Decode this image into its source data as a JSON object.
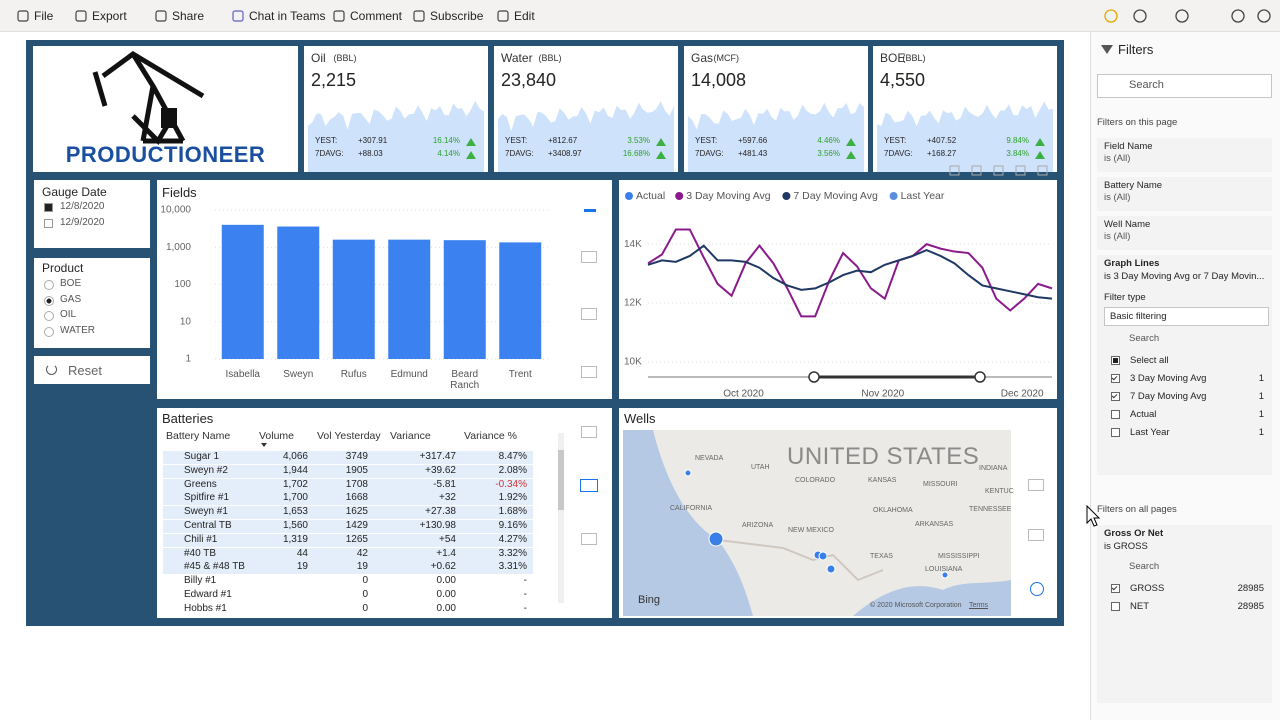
{
  "toolbar": {
    "items": [
      "File",
      "Export",
      "Share",
      "Chat in Teams",
      "Comment",
      "Subscribe",
      "Edit"
    ]
  },
  "logo": "PRODUCTIONEER",
  "kpis": [
    {
      "title": "Oil",
      "unit": "(BBL)",
      "value": "2,215",
      "yest_label": "YEST:",
      "yest": "+307.91",
      "yest_pct": "16.14%",
      "avg_label": "7DAVG:",
      "avg": "+88.03",
      "avg_pct": "4.14%"
    },
    {
      "title": "Water",
      "unit": "(BBL)",
      "value": "23,840",
      "yest_label": "YEST:",
      "yest": "+812.67",
      "yest_pct": "3.53%",
      "avg_label": "7DAVG:",
      "avg": "+3408.97",
      "avg_pct": "16.68%"
    },
    {
      "title": "Gas",
      "unit": "(MCF)",
      "value": "14,008",
      "yest_label": "YEST:",
      "yest": "+597.66",
      "yest_pct": "4.46%",
      "avg_label": "7DAVG:",
      "avg": "+481.43",
      "avg_pct": "3.56%"
    },
    {
      "title": "BOE",
      "unit": "(BBL)",
      "value": "4,550",
      "yest_label": "YEST:",
      "yest": "+407.52",
      "yest_pct": "9.84%",
      "avg_label": "7DAVG:",
      "avg": "+168.27",
      "avg_pct": "3.84%"
    }
  ],
  "gauge_date": {
    "title": "Gauge Date",
    "options": [
      "12/8/2020",
      "12/9/2020"
    ]
  },
  "product": {
    "title": "Product",
    "options": [
      "BOE",
      "GAS",
      "OIL",
      "WATER"
    ]
  },
  "reset": "Reset",
  "chart_data": [
    {
      "type": "bar",
      "title": "Fields",
      "categories": [
        "Isabella",
        "Sweyn",
        "Rufus",
        "Edmund",
        "Beard Ranch",
        "Trent"
      ],
      "values": [
        4000,
        3600,
        1600,
        1600,
        1550,
        1350
      ],
      "color": "#3b82f0",
      "log_scale": true,
      "grid": true,
      "ylim": [
        1,
        10000
      ],
      "yticks": [
        1,
        10,
        100,
        {
          "value": 1000,
          "label": "1,000"
        },
        {
          "value": 10000,
          "label": "10,000"
        }
      ]
    },
    {
      "type": "line",
      "grid": true,
      "ylim": [
        10000,
        15500
      ],
      "yticks": [
        {
          "value": 10000,
          "label": "10K"
        },
        {
          "value": 12000,
          "label": "12K"
        },
        {
          "value": 14000,
          "label": "14K"
        }
      ],
      "xlim": [
        0,
        29
      ],
      "xticks": [
        {
          "value": 7,
          "label": "Oct 2020"
        },
        {
          "value": 17,
          "label": "Nov 2020"
        },
        {
          "value": 27,
          "label": "Dec 2020"
        }
      ],
      "series": [
        {
          "name": "Actual",
          "color": "#3a7fe8",
          "values": [
            null,
            null,
            null,
            null,
            null,
            null,
            null,
            null,
            null,
            null,
            null,
            null,
            null,
            null,
            null,
            null,
            null,
            null,
            null,
            null,
            null,
            null,
            null,
            null,
            null,
            null,
            null,
            null,
            null,
            null
          ]
        },
        {
          "name": "3 Day Moving Avg",
          "color": "#8b1a8b",
          "values": [
            13350,
            13650,
            14500,
            14500,
            13550,
            12650,
            12250,
            13350,
            13950,
            13350,
            12500,
            11550,
            11550,
            12750,
            13700,
            13250,
            12500,
            12150,
            13450,
            13600,
            14000,
            13850,
            13750,
            13700,
            13200,
            12150,
            11750,
            12150,
            12650,
            12500
          ]
        },
        {
          "name": "7 Day Moving Avg",
          "color": "#1f3864",
          "values": [
            13300,
            13450,
            13400,
            13600,
            13950,
            13450,
            13450,
            13400,
            13200,
            12850,
            12600,
            12450,
            12500,
            12700,
            12950,
            13100,
            13050,
            13300,
            13450,
            13600,
            13800,
            13600,
            13350,
            12950,
            12600,
            12500,
            12400,
            12300,
            12200,
            12150
          ]
        },
        {
          "name": "Last Year",
          "color": "#5a8fe0",
          "values": [
            null,
            null,
            null,
            null,
            null,
            null,
            null,
            null,
            null,
            null,
            null,
            null,
            null,
            null,
            null,
            null,
            null,
            null,
            null,
            null,
            null,
            null,
            null,
            null,
            null,
            null,
            null,
            null,
            null,
            null
          ]
        }
      ]
    }
  ],
  "batteries": {
    "title": "Batteries",
    "columns": [
      "Battery Name",
      "Volume",
      "Vol Yesterday",
      "Variance",
      "Variance %"
    ],
    "rows": [
      [
        "Sugar 1",
        "4,066",
        "3749",
        "+317.47",
        "8.47%"
      ],
      [
        "Sweyn #2",
        "1,944",
        "1905",
        "+39.62",
        "2.08%"
      ],
      [
        "Greens",
        "1,702",
        "1708",
        "-5.81",
        "-0.34%"
      ],
      [
        "Spitfire #1",
        "1,700",
        "1668",
        "+32",
        "1.92%"
      ],
      [
        "Sweyn #1",
        "1,653",
        "1625",
        "+27.38",
        "1.68%"
      ],
      [
        "Central TB",
        "1,560",
        "1429",
        "+130.98",
        "9.16%"
      ],
      [
        "Chili #1",
        "1,319",
        "1265",
        "+54",
        "4.27%"
      ],
      [
        "#40 TB",
        "44",
        "42",
        "+1.4",
        "3.32%"
      ],
      [
        "#45 & #48 TB",
        "19",
        "19",
        "+0.62",
        "3.31%"
      ],
      [
        "Billy #1",
        null,
        "0",
        "0.00",
        "-"
      ],
      [
        "Edward #1",
        null,
        "0",
        "0.00",
        "-"
      ],
      [
        "Hobbs #1",
        null,
        "0",
        "0.00",
        "-"
      ]
    ]
  },
  "wells": {
    "title": "Wells",
    "country": "UNITED STATES",
    "states": [
      "NEVADA",
      "UTAH",
      "COLORADO",
      "KANSAS",
      "MISSOURI",
      "CALIFORNIA",
      "OKLAHOMA",
      "ARIZONA",
      "NEW MEXICO",
      "ARKANSAS",
      "TENNESSEE",
      "TEXAS",
      "MISSISSIPPI",
      "LOUISIANA",
      "INDIANA",
      "KENTUC"
    ],
    "brand": "Bing",
    "copyright": "© 2020 Microsoft Corporation",
    "terms": "Terms"
  },
  "filters": {
    "title": "Filters",
    "search": "Search",
    "page_heading": "Filters on this page",
    "cards": [
      {
        "name": "Field Name",
        "state": "is (All)"
      },
      {
        "name": "Battery Name",
        "state": "is (All)"
      },
      {
        "name": "Well Name",
        "state": "is (All)"
      }
    ],
    "graph_lines": {
      "name": "Graph Lines",
      "state": "is 3 Day Moving Avg or 7 Day Movin...",
      "filter_type_label": "Filter type",
      "filter_type": "Basic filtering",
      "search": "Search",
      "options": [
        {
          "label": "Select all",
          "count": null
        },
        {
          "label": "3 Day Moving Avg",
          "count": "1"
        },
        {
          "label": "7 Day Moving Avg",
          "count": "1"
        },
        {
          "label": "Actual",
          "count": "1"
        },
        {
          "label": "Last Year",
          "count": "1"
        }
      ]
    },
    "all_heading": "Filters on all pages",
    "gross": {
      "name": "Gross Or Net",
      "state": "is GROSS",
      "search": "Search",
      "options": [
        {
          "label": "GROSS",
          "count": "28985"
        },
        {
          "label": "NET",
          "count": "28985"
        }
      ]
    }
  }
}
